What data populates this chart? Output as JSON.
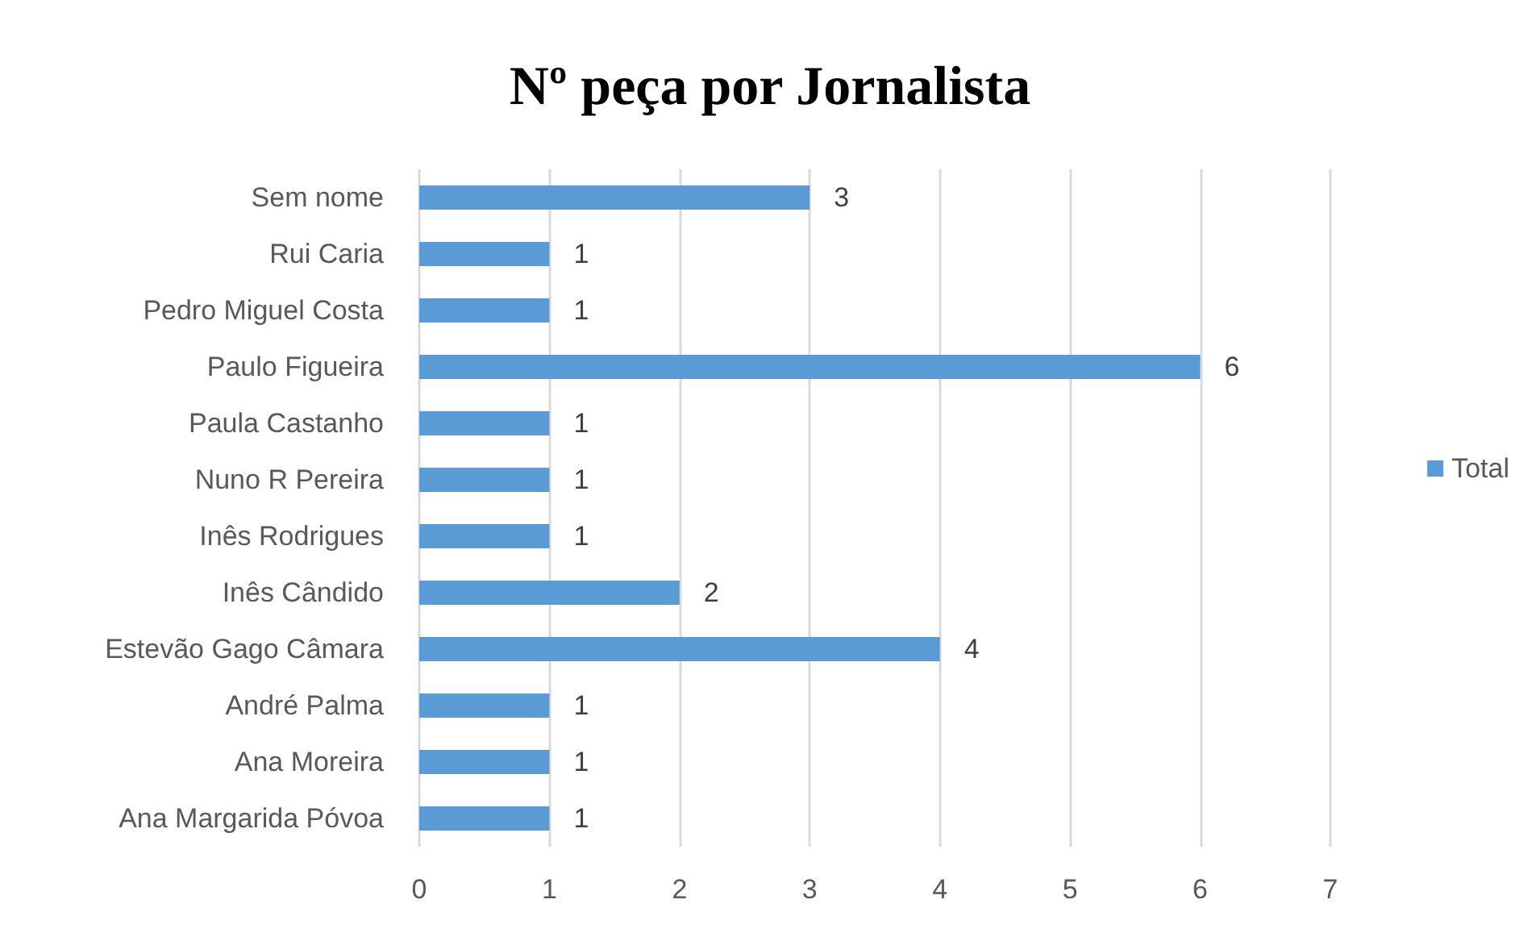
{
  "chart_data": {
    "type": "bar",
    "orientation": "horizontal",
    "title": "Nº peça por Jornalista",
    "categories": [
      "Sem nome",
      "Rui Caria",
      "Pedro Miguel Costa",
      "Paulo Figueira",
      "Paula Castanho",
      "Nuno R Pereira",
      "Inês Rodrigues",
      "Inês Cândido",
      "Estevão Gago Câmara",
      "André Palma",
      "Ana Moreira",
      "Ana Margarida Póvoa"
    ],
    "series": [
      {
        "name": "Total",
        "color": "#5b9bd5",
        "values": [
          3,
          1,
          1,
          6,
          1,
          1,
          1,
          2,
          4,
          1,
          1,
          1
        ]
      }
    ],
    "xlim": [
      0,
      7
    ],
    "xticks": [
      0,
      1,
      2,
      3,
      4,
      5,
      6,
      7
    ],
    "grid": "x",
    "legend": "right",
    "data_labels": true
  }
}
